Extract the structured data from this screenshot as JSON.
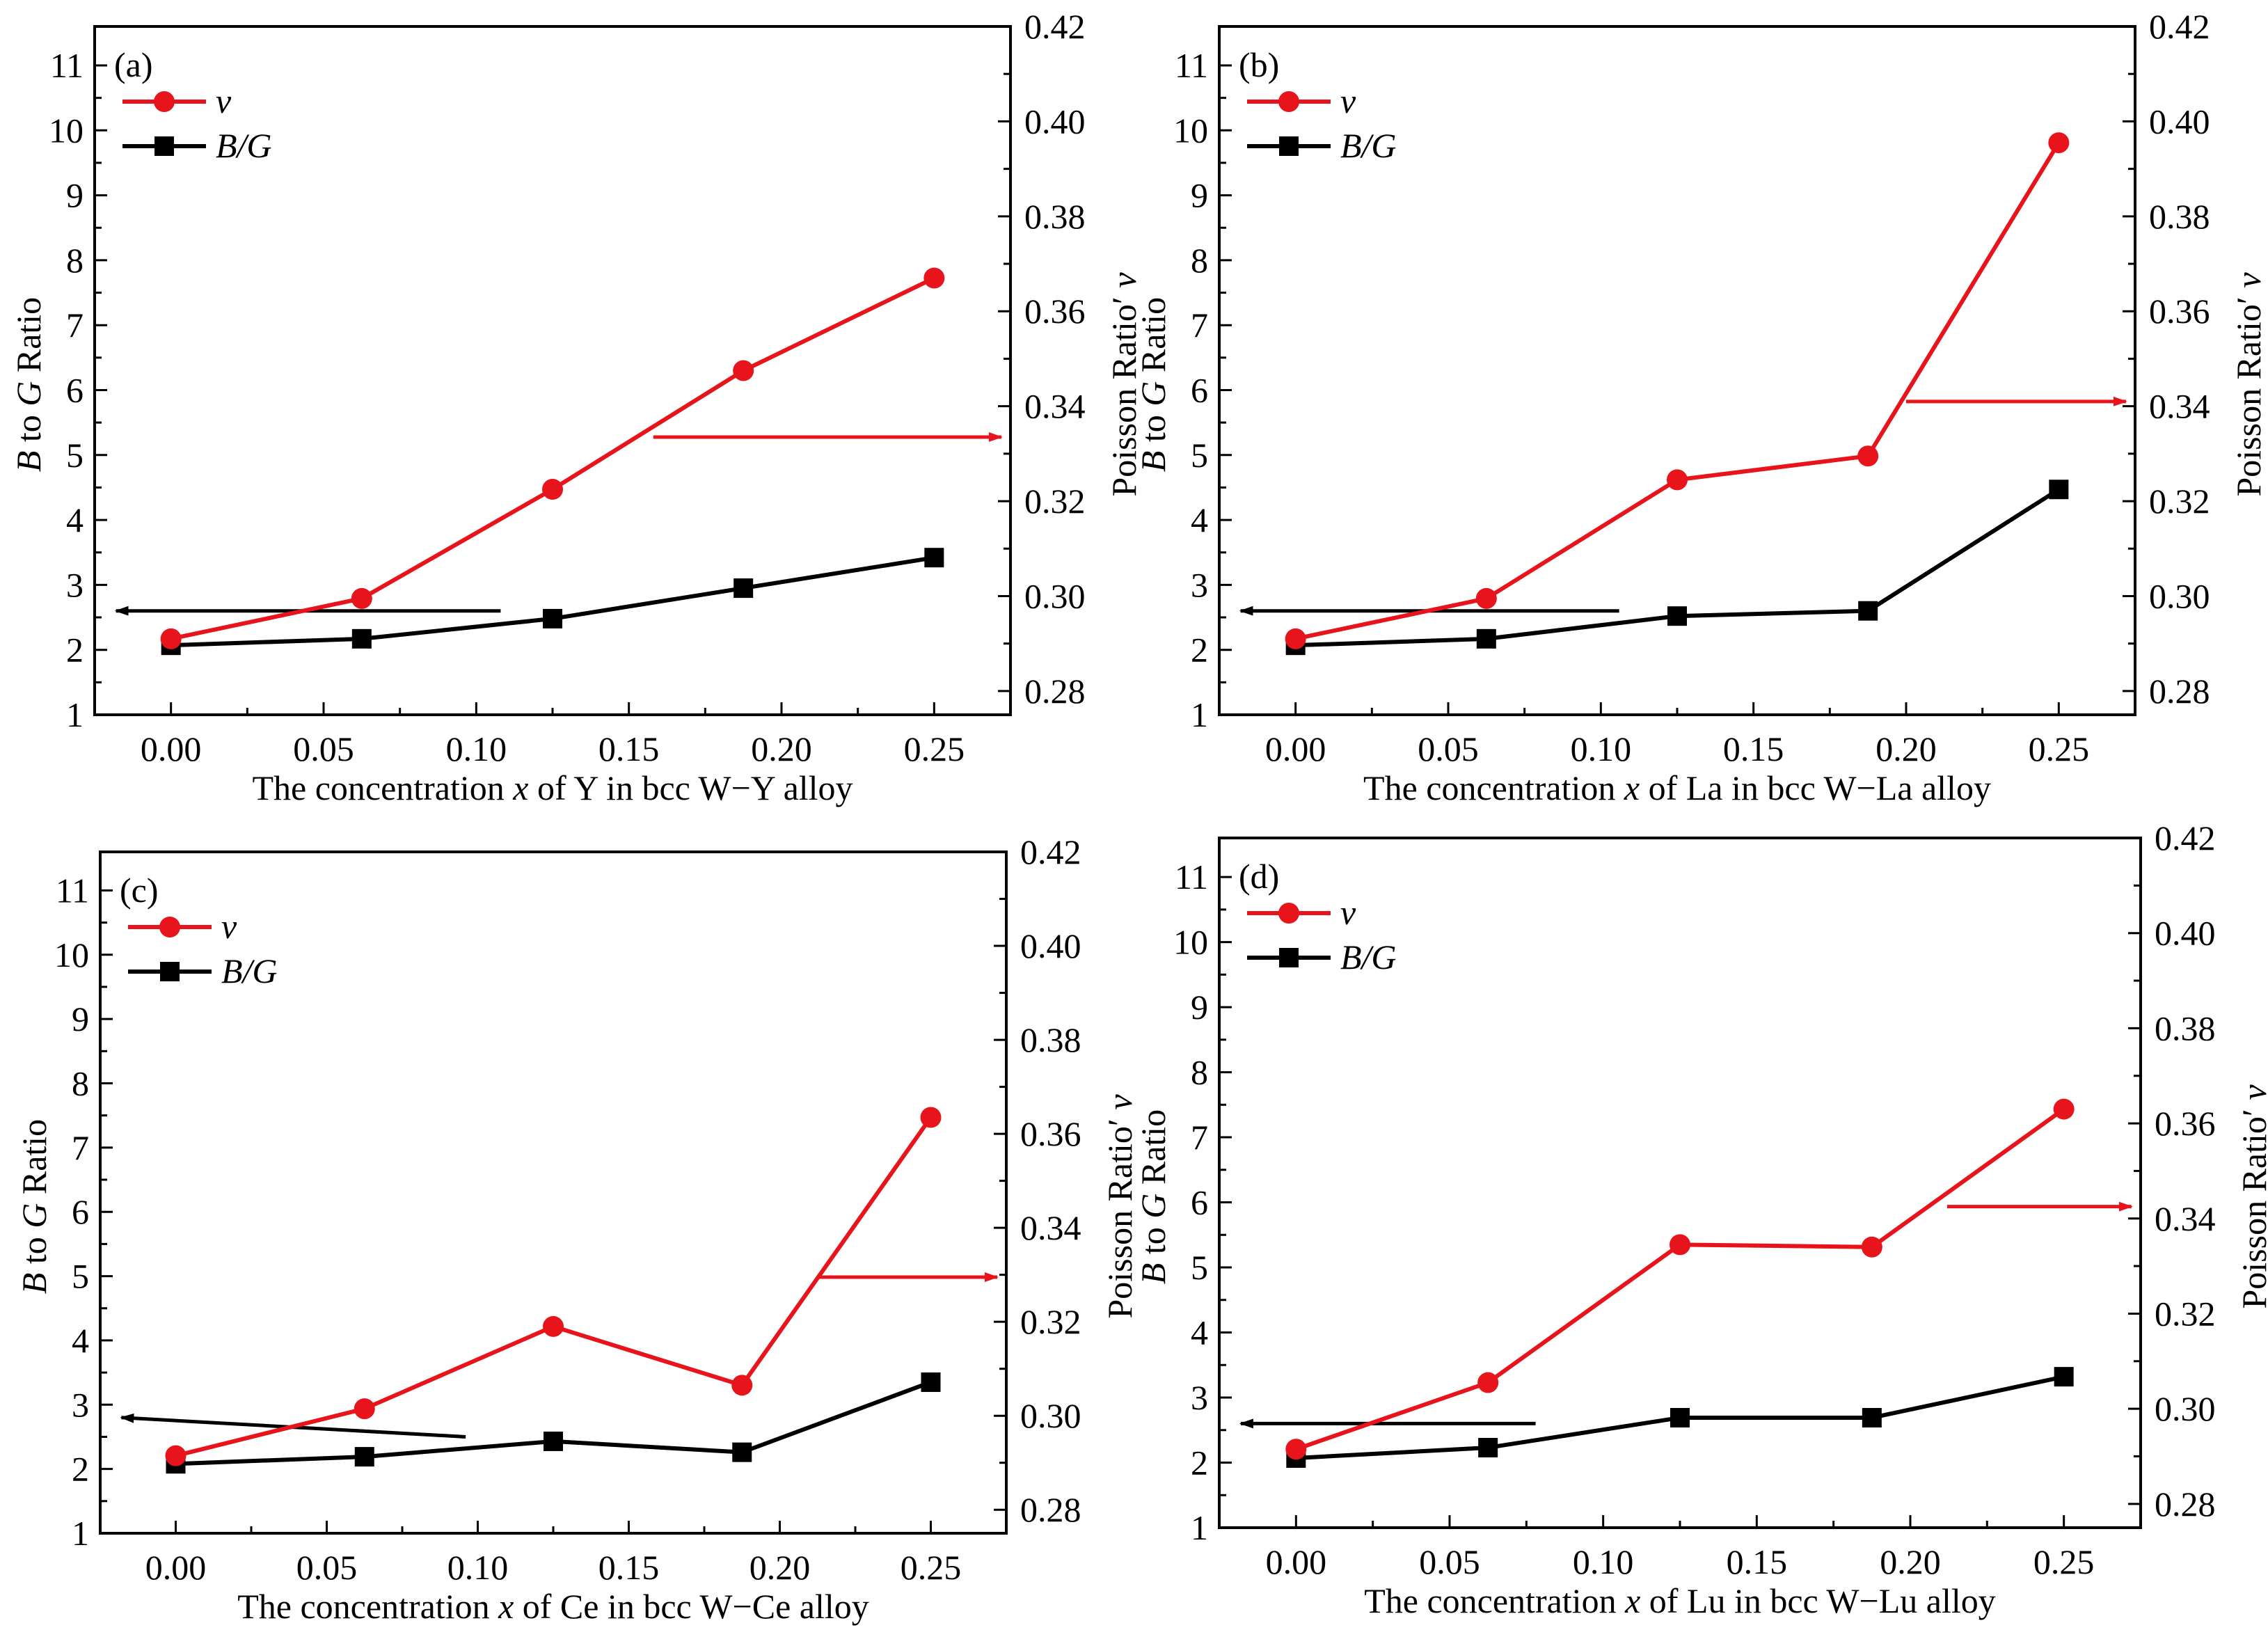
{
  "chart_data": [
    {
      "type": "line",
      "panel_label": "(a)",
      "x": [
        0.0,
        0.0625,
        0.125,
        0.1875,
        0.25
      ],
      "series": [
        {
          "name": "v",
          "axis": "right",
          "color": "#e8141c",
          "marker": "circle",
          "values": [
            0.291,
            0.2995,
            0.3225,
            0.3475,
            0.367
          ]
        },
        {
          "name": "B/G",
          "axis": "left",
          "color": "#000000",
          "marker": "square",
          "values": [
            2.07,
            2.17,
            2.48,
            2.95,
            3.42
          ]
        }
      ],
      "xlabel": [
        "The concentration ",
        "x",
        " of Y in bcc W−Y alloy"
      ],
      "ylabel_left": [
        "B",
        " to ",
        "G",
        " Ratio"
      ],
      "ylabel_right": [
        "Poisson Ratio′ ",
        "ν"
      ],
      "xlim": [
        -0.025,
        0.275
      ],
      "ylim_left": [
        1,
        11.6
      ],
      "ylim_right": [
        0.275,
        0.42
      ],
      "xticks": [
        0.0,
        0.05,
        0.1,
        0.15,
        0.2,
        0.25
      ],
      "xtick_labels": [
        "0.00",
        "0.05",
        "0.10",
        "0.15",
        "0.20",
        "0.25"
      ],
      "yticks_left": [
        1,
        2,
        3,
        4,
        5,
        6,
        7,
        8,
        9,
        10,
        11
      ],
      "ytick_labels_left": [
        "1",
        "2",
        "3",
        "4",
        "5",
        "6",
        "7",
        "8",
        "9",
        "10",
        "11"
      ],
      "yticks_right": [
        0.28,
        0.3,
        0.32,
        0.34,
        0.36,
        0.38,
        0.4,
        0.42
      ],
      "ytick_labels_right": [
        "0.28",
        "0.30",
        "0.32",
        "0.34",
        "0.36",
        "0.38",
        "0.40",
        "0.42"
      ],
      "arrows": [
        {
          "color": "#e8141c",
          "direction": "right",
          "x_from": 0.158,
          "x_to": 0.272,
          "y": 0.3335,
          "axis": "right"
        },
        {
          "color": "#000000",
          "direction": "left",
          "x_from": 0.108,
          "x_to": -0.018,
          "y": 2.6,
          "axis": "left"
        }
      ]
    },
    {
      "type": "line",
      "panel_label": "(b)",
      "x": [
        0.0,
        0.0625,
        0.125,
        0.1875,
        0.25
      ],
      "series": [
        {
          "name": "v",
          "axis": "right",
          "color": "#e8141c",
          "marker": "circle",
          "values": [
            0.291,
            0.2995,
            0.3245,
            0.3295,
            0.3955
          ]
        },
        {
          "name": "B/G",
          "axis": "left",
          "color": "#000000",
          "marker": "square",
          "values": [
            2.07,
            2.17,
            2.52,
            2.6,
            4.47
          ]
        }
      ],
      "xlabel": [
        "The concentration ",
        "x",
        " of La in bcc W−La alloy"
      ],
      "ylabel_left": [
        "B",
        " to ",
        "G",
        " Ratio"
      ],
      "ylabel_right": [
        "Poisson Ratio′ ",
        "ν"
      ],
      "xlim": [
        -0.025,
        0.275
      ],
      "ylim_left": [
        1,
        11.6
      ],
      "ylim_right": [
        0.275,
        0.42
      ],
      "xticks": [
        0.0,
        0.05,
        0.1,
        0.15,
        0.2,
        0.25
      ],
      "xtick_labels": [
        "0.00",
        "0.05",
        "0.10",
        "0.15",
        "0.20",
        "0.25"
      ],
      "yticks_left": [
        1,
        2,
        3,
        4,
        5,
        6,
        7,
        8,
        9,
        10,
        11
      ],
      "ytick_labels_left": [
        "1",
        "2",
        "3",
        "4",
        "5",
        "6",
        "7",
        "8",
        "9",
        "10",
        "11"
      ],
      "yticks_right": [
        0.28,
        0.3,
        0.32,
        0.34,
        0.36,
        0.38,
        0.4,
        0.42
      ],
      "ytick_labels_right": [
        "0.28",
        "0.30",
        "0.32",
        "0.34",
        "0.36",
        "0.38",
        "0.40",
        "0.42"
      ],
      "arrows": [
        {
          "color": "#e8141c",
          "direction": "right",
          "x_from": 0.2,
          "x_to": 0.272,
          "y": 0.341,
          "axis": "right"
        },
        {
          "color": "#000000",
          "direction": "left",
          "x_from": 0.106,
          "x_to": -0.018,
          "y": 2.6,
          "axis": "left"
        }
      ]
    },
    {
      "type": "line",
      "panel_label": "(c)",
      "x": [
        0.0,
        0.0625,
        0.125,
        0.1875,
        0.25
      ],
      "series": [
        {
          "name": "v",
          "axis": "right",
          "color": "#e8141c",
          "marker": "circle",
          "values": [
            0.2915,
            0.3015,
            0.319,
            0.3065,
            0.3635
          ]
        },
        {
          "name": "B/G",
          "axis": "left",
          "color": "#000000",
          "marker": "square",
          "values": [
            2.08,
            2.19,
            2.43,
            2.26,
            3.35
          ]
        }
      ],
      "xlabel": [
        "The concentration ",
        "x",
        " of Ce in bcc W−Ce alloy"
      ],
      "ylabel_left": [
        "B",
        " to ",
        "G",
        " Ratio"
      ],
      "ylabel_right": [
        "Poisson Ratio′ ",
        "ν"
      ],
      "xlim": [
        -0.025,
        0.275
      ],
      "ylim_left": [
        1,
        11.6
      ],
      "ylim_right": [
        0.275,
        0.42
      ],
      "xticks": [
        0.0,
        0.05,
        0.1,
        0.15,
        0.2,
        0.25
      ],
      "xtick_labels": [
        "0.00",
        "0.05",
        "0.10",
        "0.15",
        "0.20",
        "0.25"
      ],
      "yticks_left": [
        1,
        2,
        3,
        4,
        5,
        6,
        7,
        8,
        9,
        10,
        11
      ],
      "ytick_labels_left": [
        "1",
        "2",
        "3",
        "4",
        "5",
        "6",
        "7",
        "8",
        "9",
        "10",
        "11"
      ],
      "yticks_right": [
        0.28,
        0.3,
        0.32,
        0.34,
        0.36,
        0.38,
        0.4,
        0.42
      ],
      "ytick_labels_right": [
        "0.28",
        "0.30",
        "0.32",
        "0.34",
        "0.36",
        "0.38",
        "0.40",
        "0.42"
      ],
      "arrows": [
        {
          "color": "#e8141c",
          "direction": "right",
          "x_from": 0.213,
          "x_to": 0.272,
          "y": 0.3295,
          "axis": "right"
        },
        {
          "color": "#000000",
          "direction": "left",
          "x_from": 0.096,
          "x_to": -0.018,
          "y": 2.8,
          "axis": "left",
          "y_from": 2.5
        }
      ]
    },
    {
      "type": "line",
      "panel_label": "(d)",
      "x": [
        0.0,
        0.0625,
        0.125,
        0.1875,
        0.25
      ],
      "series": [
        {
          "name": "v",
          "axis": "right",
          "color": "#e8141c",
          "marker": "circle",
          "values": [
            0.2915,
            0.3055,
            0.3345,
            0.334,
            0.363
          ]
        },
        {
          "name": "B/G",
          "axis": "left",
          "color": "#000000",
          "marker": "square",
          "values": [
            2.07,
            2.23,
            2.69,
            2.69,
            3.32
          ]
        }
      ],
      "xlabel": [
        "The concentration ",
        "x",
        " of Lu in bcc W−Lu alloy"
      ],
      "ylabel_left": [
        "B",
        " to ",
        "G",
        " Ratio"
      ],
      "ylabel_right": [
        "Poisson Ratio′ ",
        "ν"
      ],
      "xlim": [
        -0.025,
        0.275
      ],
      "ylim_left": [
        1,
        11.6
      ],
      "ylim_right": [
        0.275,
        0.42
      ],
      "xticks": [
        0.0,
        0.05,
        0.1,
        0.15,
        0.2,
        0.25
      ],
      "xtick_labels": [
        "0.00",
        "0.05",
        "0.10",
        "0.15",
        "0.20",
        "0.25"
      ],
      "yticks_left": [
        1,
        2,
        3,
        4,
        5,
        6,
        7,
        8,
        9,
        10,
        11
      ],
      "ytick_labels_left": [
        "1",
        "2",
        "3",
        "4",
        "5",
        "6",
        "7",
        "8",
        "9",
        "10",
        "11"
      ],
      "yticks_right": [
        0.28,
        0.3,
        0.32,
        0.34,
        0.36,
        0.38,
        0.4,
        0.42
      ],
      "ytick_labels_right": [
        "0.28",
        "0.30",
        "0.32",
        "0.34",
        "0.36",
        "0.38",
        "0.40",
        "0.42"
      ],
      "arrows": [
        {
          "color": "#e8141c",
          "direction": "right",
          "x_from": 0.212,
          "x_to": 0.272,
          "y": 0.3425,
          "axis": "right"
        },
        {
          "color": "#000000",
          "direction": "left",
          "x_from": 0.078,
          "x_to": -0.018,
          "y": 2.6,
          "axis": "left"
        }
      ]
    }
  ],
  "legend": {
    "v_label": "v",
    "bg_label": "B/G"
  }
}
